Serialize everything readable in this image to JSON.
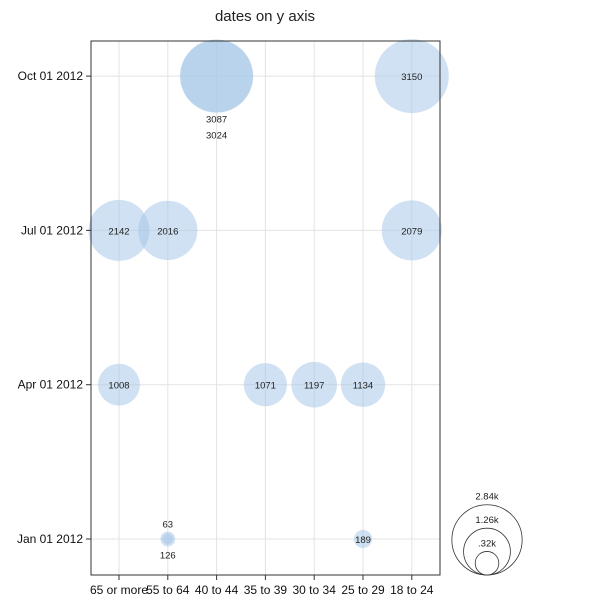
{
  "chart_data": {
    "type": "scatter",
    "subtype": "bubble",
    "title": "dates on y axis",
    "xlabel": "",
    "ylabel": "",
    "categories": [
      "65 or more",
      "55 to 64",
      "40 to 44",
      "35 to 39",
      "30 to 34",
      "25 to 29",
      "18 to 24"
    ],
    "y_ticks": [
      "Jan 01 2012",
      "Apr 01 2012",
      "Jul 01 2012",
      "Oct 01 2012"
    ],
    "grid": true,
    "bubble_color": "#a7c8e8",
    "points": [
      {
        "x": "55 to 64",
        "y": "Jan 01 2012",
        "size": 63,
        "label": "63"
      },
      {
        "x": "55 to 64",
        "y": "Jan 01 2012",
        "size": 126,
        "label": "126"
      },
      {
        "x": "25 to 29",
        "y": "Jan 01 2012",
        "size": 189,
        "label": "189"
      },
      {
        "x": "65 or more",
        "y": "Apr 01 2012",
        "size": 1008,
        "label": "1008"
      },
      {
        "x": "35 to 39",
        "y": "Apr 01 2012",
        "size": 1071,
        "label": "1071"
      },
      {
        "x": "30 to 34",
        "y": "Apr 01 2012",
        "size": 1197,
        "label": "1197"
      },
      {
        "x": "25 to 29",
        "y": "Apr 01 2012",
        "size": 1134,
        "label": "1134"
      },
      {
        "x": "65 or more",
        "y": "Jul 01 2012",
        "size": 2142,
        "label": "2142"
      },
      {
        "x": "55 to 64",
        "y": "Jul 01 2012",
        "size": 2016,
        "label": "2016"
      },
      {
        "x": "18 to 24",
        "y": "Jul 01 2012",
        "size": 2079,
        "label": "2079"
      },
      {
        "x": "40 to 44",
        "y": "Oct 01 2012",
        "size": 3087,
        "label": "3087"
      },
      {
        "x": "40 to 44",
        "y": "Oct 01 2012",
        "size": 3024,
        "label": "3024"
      },
      {
        "x": "18 to 24",
        "y": "Oct 01 2012",
        "size": 3150,
        "label": "3150"
      }
    ],
    "size_legend": [
      {
        "label": "2.84k",
        "value": 2840
      },
      {
        "label": "1.26k",
        "value": 1260
      },
      {
        "label": ".32k",
        "value": 320
      }
    ]
  }
}
